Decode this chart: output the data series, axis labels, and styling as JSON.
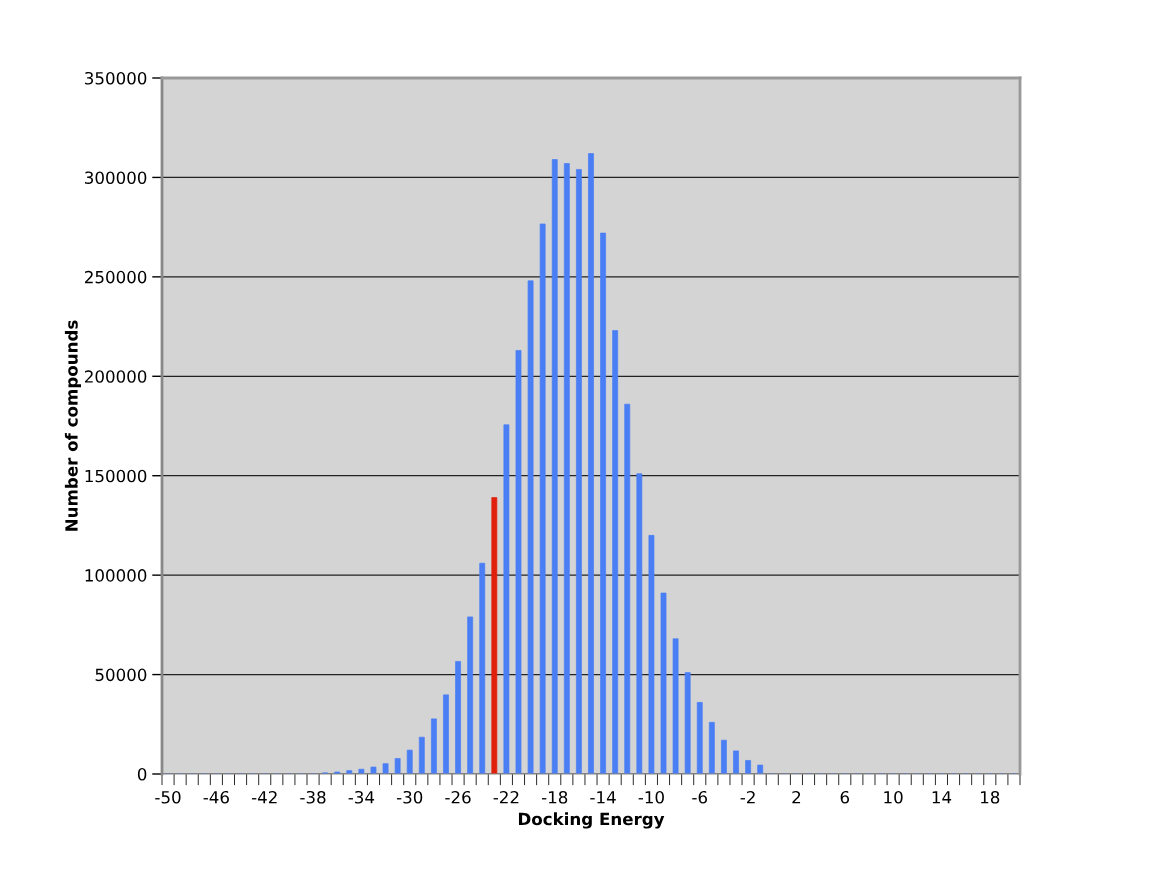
{
  "chart_data": {
    "type": "bar",
    "xlabel": "Docking Energy",
    "ylabel": "Number of compounds",
    "categories": [
      "-50",
      null,
      null,
      null,
      "-46",
      null,
      null,
      null,
      "-42",
      null,
      null,
      null,
      "-38",
      null,
      null,
      null,
      "-34",
      null,
      null,
      null,
      "-30",
      null,
      null,
      null,
      "-26",
      null,
      null,
      null,
      "-22",
      null,
      null,
      null,
      "-18",
      null,
      null,
      null,
      "-14",
      null,
      null,
      null,
      "-10",
      null,
      null,
      null,
      "-6",
      null,
      null,
      null,
      "-2",
      null,
      null,
      null,
      "2",
      null,
      null,
      null,
      "6",
      null,
      null,
      null,
      "10",
      null,
      null,
      null,
      "14",
      null,
      null,
      null,
      "18",
      null,
      null
    ],
    "values": [
      0,
      0,
      0,
      0,
      0,
      0,
      0,
      0,
      0,
      0,
      0,
      0,
      0,
      600,
      1000,
      1700,
      2400,
      3500,
      5200,
      7800,
      12000,
      18500,
      27700,
      39800,
      56600,
      79000,
      106000,
      139000,
      175600,
      213000,
      248000,
      276600,
      309000,
      307000,
      304000,
      312000,
      272000,
      223000,
      186000,
      151000,
      120000,
      91000,
      68000,
      51000,
      36000,
      26000,
      17000,
      11600,
      6800,
      4500,
      0,
      0,
      0,
      0,
      0,
      0,
      0,
      0,
      0,
      0,
      0,
      0,
      0,
      0,
      0,
      0,
      0,
      0,
      0,
      0,
      0
    ],
    "colors": [
      "#4a7ef5",
      "#4a7ef5",
      "#4a7ef5",
      "#4a7ef5",
      "#4a7ef5",
      "#4a7ef5",
      "#4a7ef5",
      "#4a7ef5",
      "#4a7ef5",
      "#4a7ef5",
      "#4a7ef5",
      "#4a7ef5",
      "#4a7ef5",
      "#4a7ef5",
      "#4a7ef5",
      "#4a7ef5",
      "#4a7ef5",
      "#4a7ef5",
      "#4a7ef5",
      "#4a7ef5",
      "#4a7ef5",
      "#4a7ef5",
      "#4a7ef5",
      "#4a7ef5",
      "#4a7ef5",
      "#4a7ef5",
      "#4a7ef5",
      "#e0200a",
      "#4a7ef5",
      "#4a7ef5",
      "#4a7ef5",
      "#4a7ef5",
      "#4a7ef5",
      "#4a7ef5",
      "#4a7ef5",
      "#4a7ef5",
      "#4a7ef5",
      "#4a7ef5",
      "#4a7ef5",
      "#4a7ef5",
      "#4a7ef5",
      "#4a7ef5",
      "#4a7ef5",
      "#4a7ef5",
      "#4a7ef5",
      "#4a7ef5",
      "#4a7ef5",
      "#4a7ef5",
      "#4a7ef5",
      "#4a7ef5",
      "#4a7ef5",
      "#4a7ef5",
      "#4a7ef5",
      "#4a7ef5",
      "#4a7ef5",
      "#4a7ef5",
      "#4a7ef5",
      "#4a7ef5",
      "#4a7ef5",
      "#4a7ef5",
      "#4a7ef5",
      "#4a7ef5",
      "#4a7ef5",
      "#4a7ef5",
      "#4a7ef5",
      "#4a7ef5",
      "#4a7ef5",
      "#4a7ef5",
      "#4a7ef5",
      "#4a7ef5",
      "#4a7ef5"
    ],
    "ylim": [
      0,
      350000
    ],
    "yticks": [
      0,
      50000,
      100000,
      150000,
      200000,
      250000,
      300000,
      350000
    ],
    "grid": "y"
  }
}
